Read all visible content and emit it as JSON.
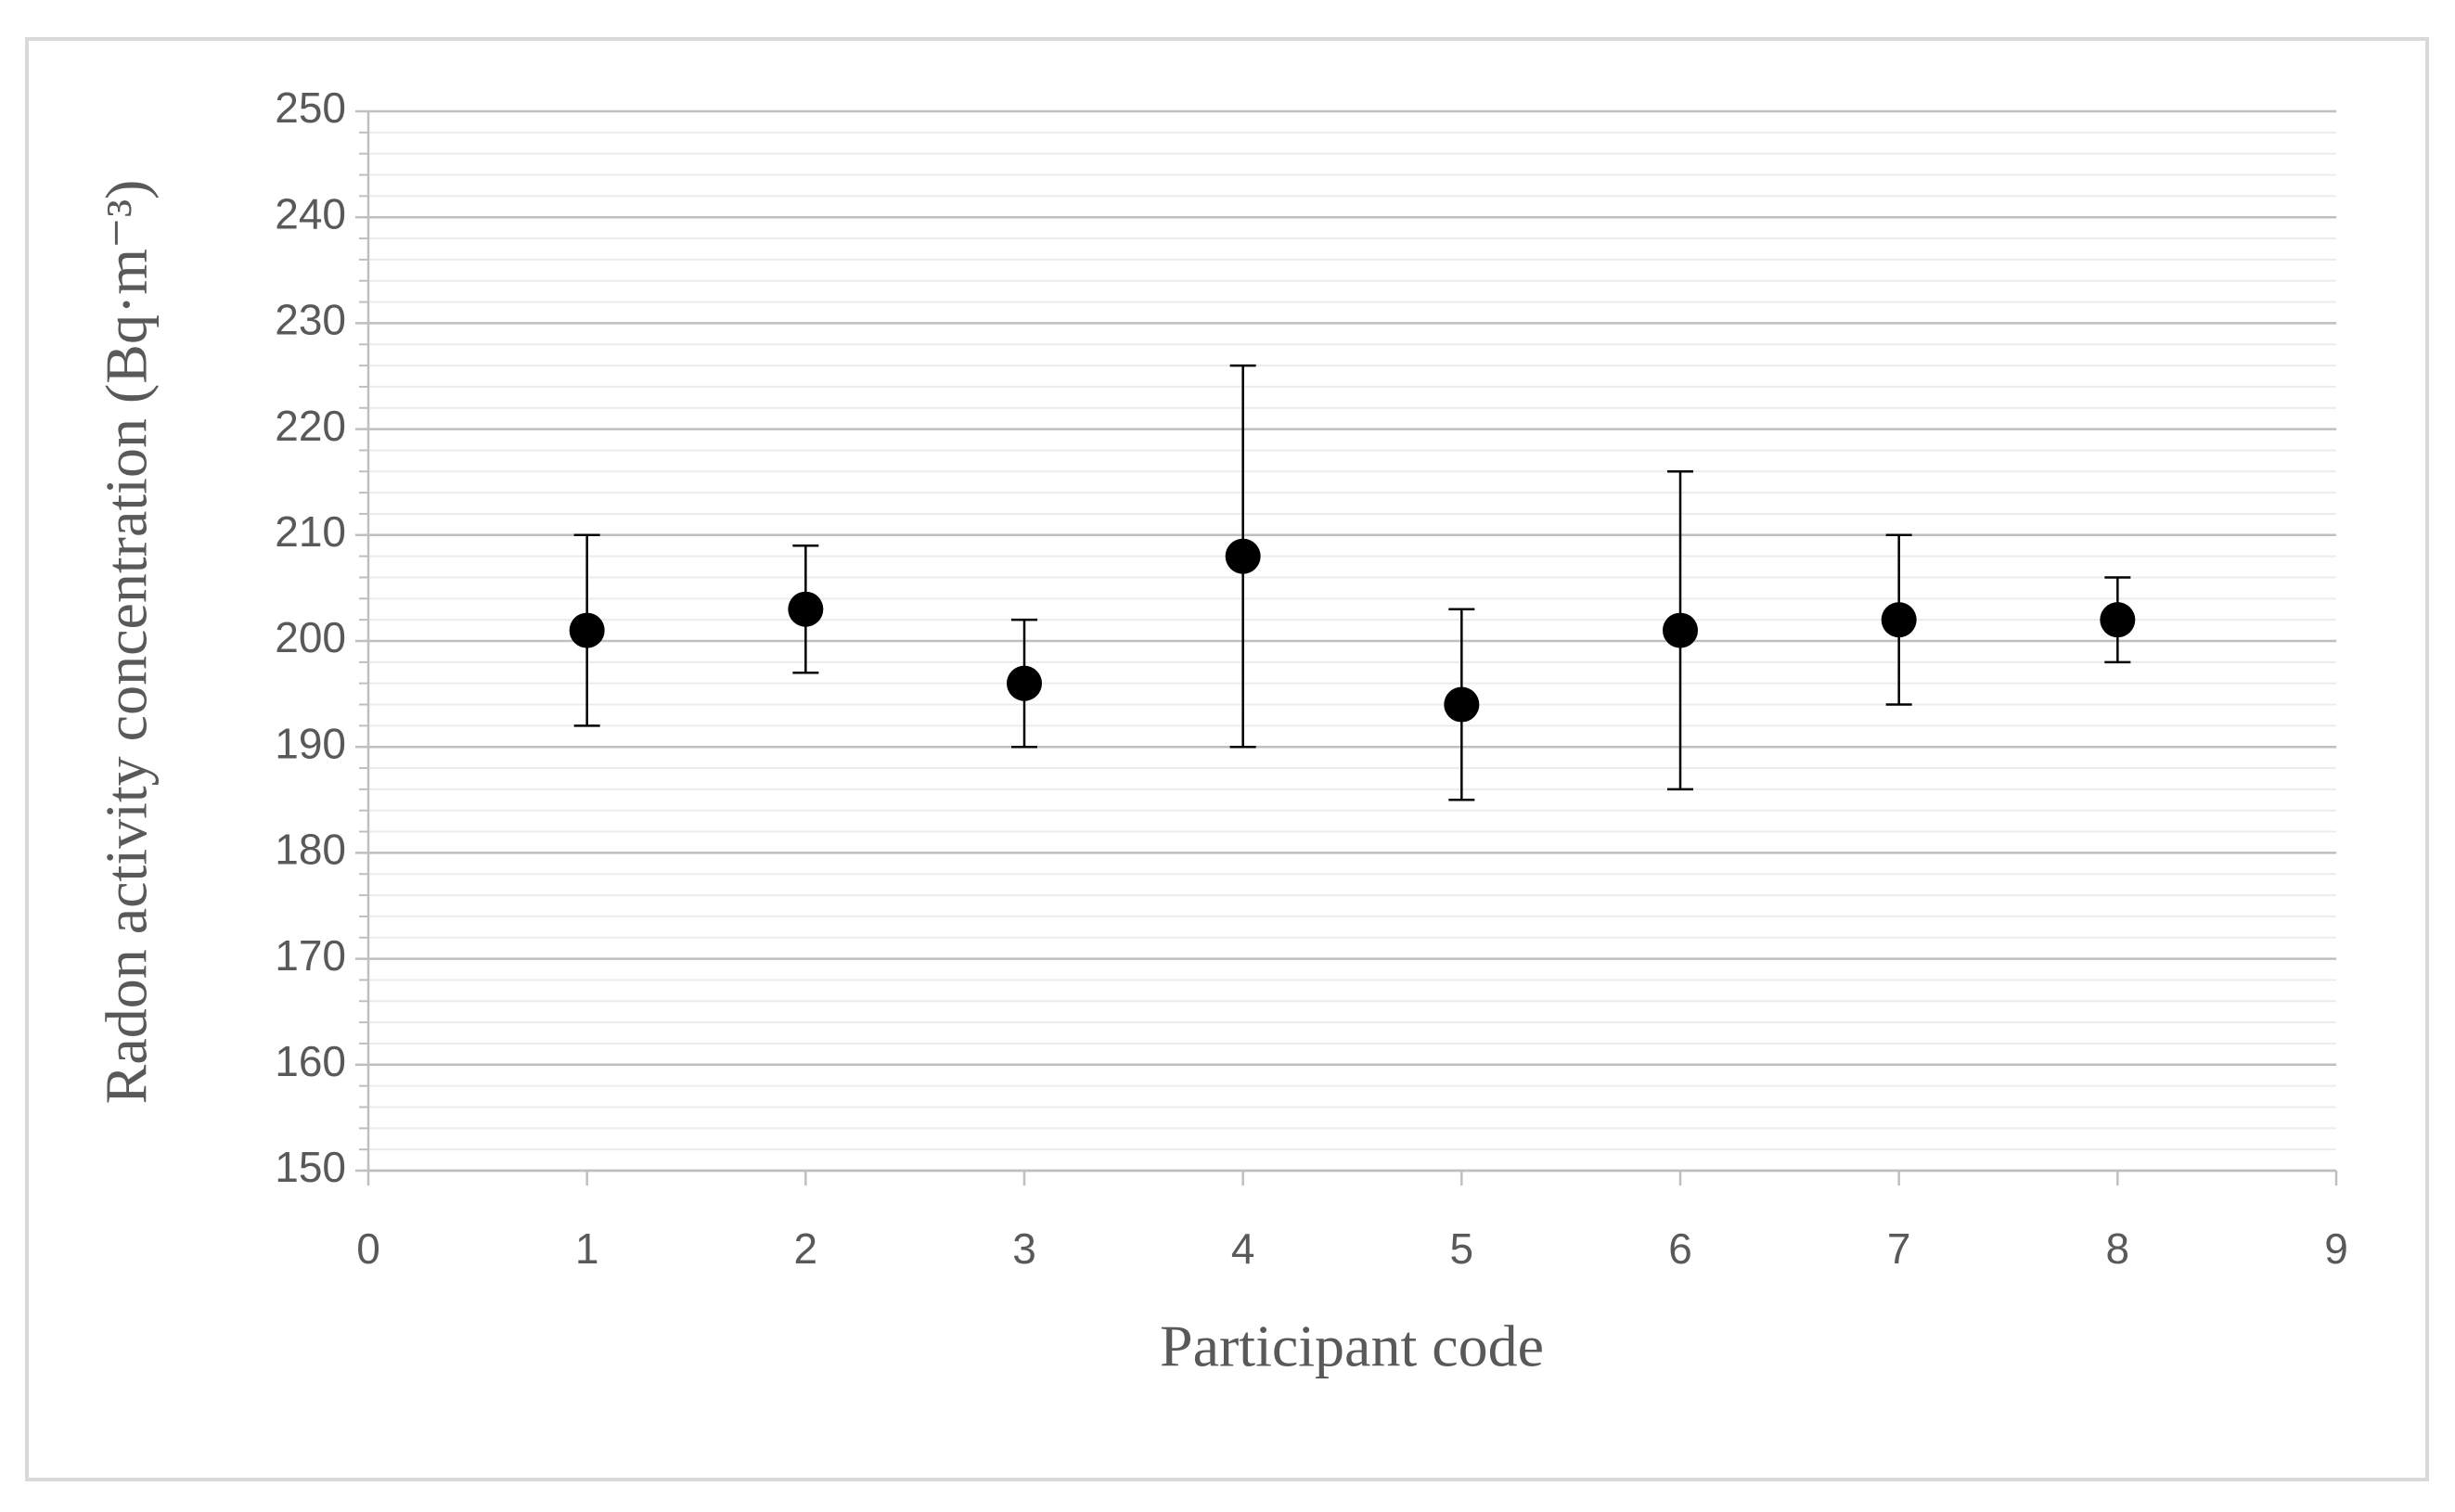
{
  "chart_data": {
    "type": "scatter",
    "x_label": "Participant code",
    "y_label": "Radon activity concentration (Bq·m⁻³)",
    "x": [
      1,
      2,
      3,
      4,
      5,
      6,
      7,
      8
    ],
    "values": [
      201,
      203,
      196,
      208,
      194,
      201,
      202,
      202
    ],
    "errors": [
      9,
      6,
      6,
      18,
      9,
      15,
      8,
      4
    ],
    "color": "#000000",
    "xlim": [
      0,
      9
    ],
    "xticks": [
      0,
      1,
      2,
      3,
      4,
      5,
      6,
      7,
      8,
      9
    ],
    "ylim": [
      150,
      250
    ],
    "yticks": [
      150,
      160,
      170,
      180,
      190,
      200,
      210,
      220,
      230,
      240,
      250
    ],
    "grid": true,
    "minor_grid": true
  }
}
